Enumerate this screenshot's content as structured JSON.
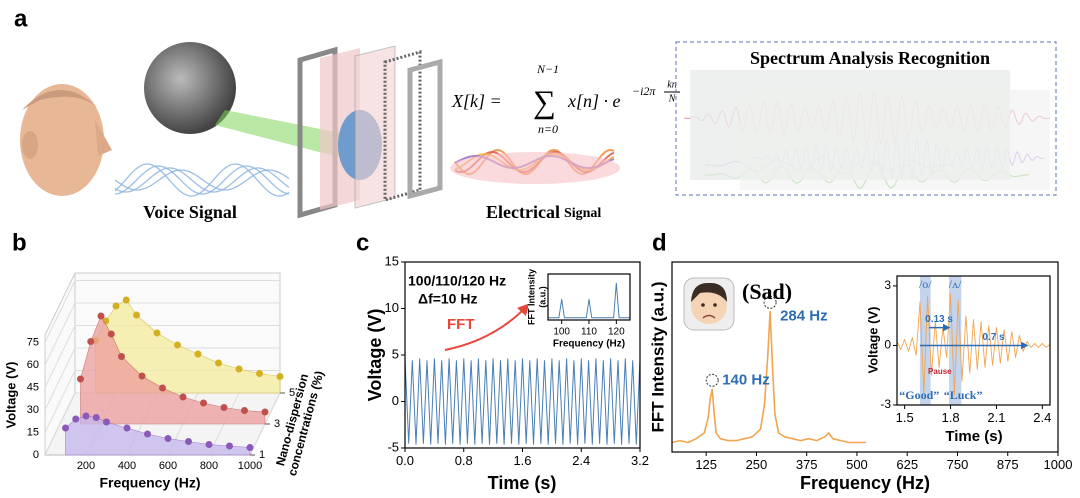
{
  "panel_a": {
    "label": "a",
    "voice_caption": "Voice Signal",
    "electrical_caption": "Electrical",
    "electrical_caption_small": "Signal",
    "spectrum_title": "Spectrum Analysis Recognition",
    "formula": {
      "lhs": "X[k] =",
      "sum": "∑",
      "upper": "N−1",
      "lower": "n=0",
      "term": "x[n] · e",
      "exponent": "−i2π",
      "frac_num": "kn",
      "frac_den": "N"
    }
  },
  "chart_data": [
    {
      "panel": "b",
      "type": "ribbon",
      "ylabel": "Voltage (V)",
      "xlabel": "Frequency (Hz)",
      "zlabel": [
        "Nano-dispersion",
        "concentrations (%)"
      ],
      "x": [
        100,
        150,
        200,
        250,
        300,
        400,
        500,
        600,
        700,
        800,
        900,
        1000
      ],
      "xlim": [
        0,
        1000
      ],
      "xticks": [
        200,
        400,
        600,
        800,
        1000
      ],
      "ylim": [
        0,
        80
      ],
      "yticks": [
        0,
        15,
        30,
        45,
        60,
        75
      ],
      "zlim": [
        1,
        5
      ],
      "zticks": [
        1,
        3,
        5
      ],
      "grid": true,
      "series": [
        {
          "z": 1,
          "color": "#c3b6ee",
          "point_color": "#8a5ab8",
          "values": [
            18,
            24,
            26,
            25,
            22,
            18,
            14,
            11,
            9,
            7,
            6,
            5
          ]
        },
        {
          "z": 3,
          "color": "#ec9d9d",
          "point_color": "#c0504d",
          "values": [
            30,
            55,
            72,
            60,
            45,
            32,
            24,
            18,
            14,
            11,
            9,
            8
          ]
        },
        {
          "z": 5,
          "color": "#f5ec9c",
          "point_color": "#d4b020",
          "values": [
            35,
            48,
            58,
            62,
            52,
            40,
            32,
            26,
            20,
            16,
            13,
            11
          ]
        }
      ]
    },
    {
      "panel": "c",
      "type": "line",
      "xlabel": "Time (s)",
      "ylabel": "Voltage (V)",
      "color": "#4a7fb5",
      "annotations": [
        "100/110/120 Hz",
        "Δf=10 Hz",
        "FFT"
      ],
      "xlim": [
        0,
        3.2
      ],
      "xticks": [
        {
          "value": 0,
          "label": "0.0"
        },
        0.8,
        1.6,
        2.4,
        3.2
      ],
      "ylim": [
        -5,
        15
      ],
      "yticks": [
        -5,
        0,
        5,
        10,
        15
      ],
      "x": [
        0,
        0.05,
        0.1,
        0.15,
        0.2,
        0.25,
        0.3,
        0.35,
        0.4,
        0.45,
        0.5,
        0.55,
        0.6,
        0.65,
        0.7,
        0.75,
        0.8,
        0.85,
        0.9,
        0.95,
        1,
        1.05,
        1.1,
        1.15,
        1.2,
        1.25,
        1.3,
        1.35,
        1.4,
        1.45,
        1.5,
        1.55,
        1.6,
        1.65,
        1.7,
        1.75,
        1.8,
        1.85,
        1.9,
        1.95,
        2,
        2.05,
        2.1,
        2.15,
        2.2,
        2.25,
        2.3,
        2.35,
        2.4,
        2.45,
        2.5,
        2.55,
        2.6,
        2.65,
        2.7,
        2.75,
        2.8,
        2.85,
        2.9,
        2.95,
        3,
        3.05,
        3.1,
        3.15,
        3.2
      ],
      "values": [
        4.6,
        -4.5,
        4.4,
        -4.6,
        4.6,
        -4.5,
        4.4,
        -4.6,
        4.6,
        -4.5,
        4.4,
        -4.6,
        4.6,
        -4.5,
        4.4,
        -4.6,
        4.6,
        -4.5,
        4.4,
        -4.6,
        4.6,
        -4.5,
        4.4,
        -4.6,
        4.6,
        -4.5,
        4.4,
        -4.6,
        4.6,
        -4.5,
        4.4,
        -4.6,
        4.6,
        -4.5,
        4.4,
        -4.6,
        4.6,
        -4.5,
        4.4,
        -4.6,
        4.6,
        -4.5,
        4.4,
        -4.6,
        4.6,
        -4.5,
        4.4,
        -4.6,
        4.6,
        -4.5,
        4.4,
        -4.6,
        4.6,
        -4.5,
        4.4,
        -4.6,
        4.6,
        -4.5,
        4.4,
        -4.6,
        4.6,
        -4.5,
        4.4,
        -4.6,
        4.6
      ]
    },
    {
      "type": "line",
      "xlabel": "Frequency (Hz)",
      "ylabel": [
        "FFT Intensity",
        "(a.u.)"
      ],
      "color": "#4a7fb5",
      "xlim": [
        95,
        125
      ],
      "xticks": [
        100,
        110,
        120
      ],
      "ylim": [
        0,
        1
      ],
      "x": [
        95,
        99,
        100,
        101,
        109,
        110,
        111,
        119,
        120,
        121,
        125
      ],
      "values": [
        0.05,
        0.05,
        0.45,
        0.05,
        0.05,
        0.45,
        0.05,
        0.05,
        0.8,
        0.05,
        0.05
      ]
    },
    {
      "panel": "d",
      "type": "line",
      "xlabel": "Frequency (Hz)",
      "ylabel": "FFT Intensity (a.u.)",
      "color": "#f0a550",
      "emotion": "(Sad)",
      "xlim": [
        40,
        1000
      ],
      "xticks": [
        125,
        250,
        375,
        500,
        625,
        750,
        875,
        1000
      ],
      "ylim": [
        0,
        1
      ],
      "peak_labels": [
        {
          "x": 140,
          "label": "140 Hz"
        },
        {
          "x": 284,
          "label": "284 Hz"
        }
      ],
      "x": [
        40,
        60,
        80,
        100,
        120,
        130,
        135,
        140,
        145,
        150,
        160,
        180,
        200,
        220,
        240,
        260,
        270,
        278,
        284,
        290,
        296,
        305,
        320,
        340,
        360,
        380,
        400,
        420,
        430,
        440,
        460,
        480,
        500,
        540,
        560,
        570,
        580,
        600,
        650,
        700,
        750,
        800,
        850,
        900,
        950,
        1000
      ],
      "values": [
        0.05,
        0.06,
        0.05,
        0.07,
        0.1,
        0.18,
        0.28,
        0.33,
        0.2,
        0.1,
        0.07,
        0.06,
        0.06,
        0.07,
        0.08,
        0.12,
        0.25,
        0.5,
        0.74,
        0.45,
        0.2,
        0.1,
        0.08,
        0.07,
        0.06,
        0.07,
        0.06,
        0.08,
        0.1,
        0.07,
        0.06,
        0.05,
        0.05,
        0.05,
        0.07,
        0.1,
        0.06,
        0.05,
        0.04,
        0.05,
        0.04,
        0.04,
        0.03,
        0.04,
        0.03,
        0.03
      ]
    },
    {
      "type": "line",
      "xlabel": "Time (s)",
      "ylabel": "Voltage (V)",
      "color": "#f0a550",
      "xlim": [
        1.45,
        2.45
      ],
      "xticks": [
        1.5,
        1.8,
        2.1,
        2.4
      ],
      "ylim": [
        -3,
        3.5
      ],
      "yticks": [
        -3,
        0,
        3
      ],
      "segments": [
        {
          "start": 1.6,
          "end": 1.67,
          "label": "/o/"
        },
        {
          "start": 1.79,
          "end": 1.87,
          "label": "/ʌ/"
        }
      ],
      "intervals": [
        {
          "start": 1.66,
          "value": 0.13,
          "label": "0.13 s"
        },
        {
          "start": 1.6,
          "value": 0.7,
          "label": "0.7 s"
        }
      ],
      "pause": "Pause",
      "words": [
        "“Good”",
        "“Luck”"
      ],
      "x": [
        1.45,
        1.475,
        1.5,
        1.525,
        1.55,
        1.575,
        1.6,
        1.625,
        1.65,
        1.675,
        1.7,
        1.725,
        1.75,
        1.775,
        1.8,
        1.825,
        1.85,
        1.875,
        1.9,
        1.925,
        1.95,
        1.975,
        2,
        2.025,
        2.05,
        2.075,
        2.1,
        2.125,
        2.15,
        2.175,
        2.2,
        2.225,
        2.25,
        2.275,
        2.3,
        2.325,
        2.35,
        2.375,
        2.4,
        2.425,
        2.45
      ],
      "values": [
        0.2,
        -0.2,
        0.3,
        -0.3,
        0.4,
        -0.5,
        2.2,
        -2.4,
        2.5,
        -1.5,
        1.2,
        -1.1,
        0.9,
        -0.6,
        2.6,
        -2.5,
        2.3,
        -1.8,
        1.5,
        -1.4,
        1.3,
        -1.2,
        1.2,
        -1.1,
        1.0,
        -1.0,
        0.9,
        -0.9,
        0.8,
        -0.8,
        0.7,
        -0.6,
        0.5,
        -0.3,
        0.2,
        -0.1,
        0.1,
        -0.1,
        0.1,
        -0.1,
        0.05
      ]
    }
  ]
}
